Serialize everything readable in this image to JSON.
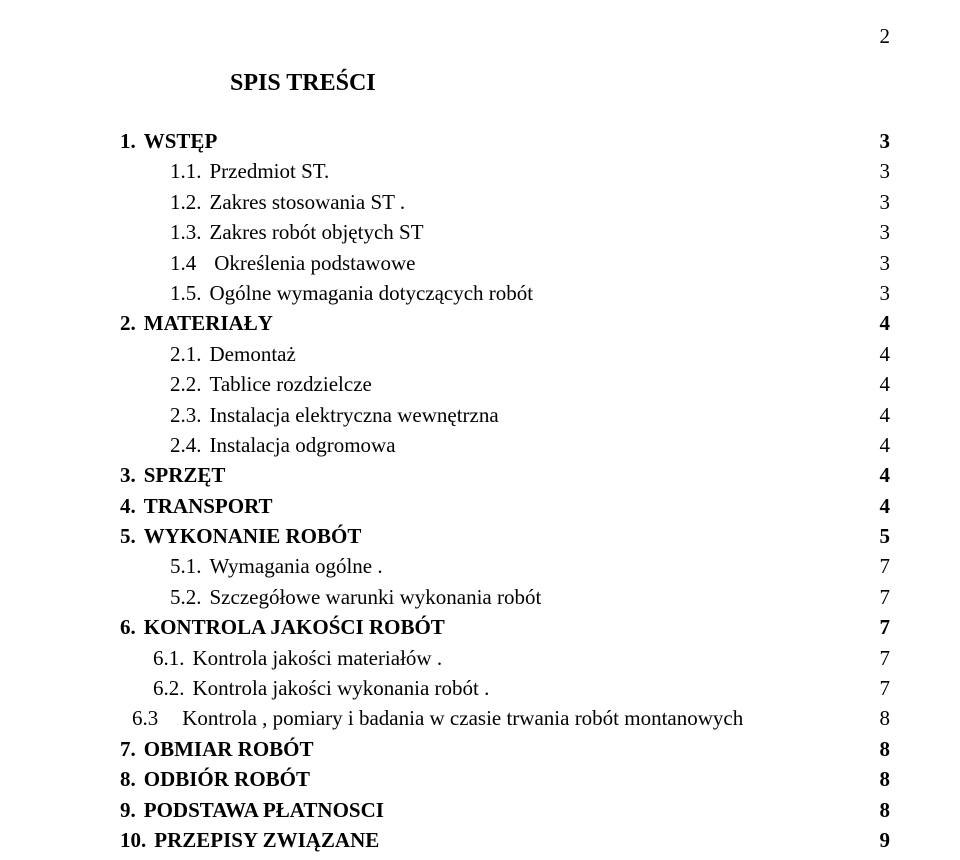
{
  "page_number": "2",
  "title": "SPIS TREŚCI",
  "text_color": "#000000",
  "background_color": "#ffffff",
  "font_family": "Times New Roman",
  "title_fontsize": 24,
  "body_fontsize": 21,
  "entries": [
    {
      "num": "1.",
      "label": "WSTĘP",
      "page": "3",
      "bold": true,
      "indent": "ind0",
      "gap": "gap-s"
    },
    {
      "num": "1.1.",
      "label": "Przedmiot ST.",
      "page": "3",
      "bold": false,
      "indent": "ind1",
      "gap": "gap-s"
    },
    {
      "num": "1.2.",
      "label": "Zakres stosowania ST .",
      "page": "3",
      "bold": false,
      "indent": "ind1",
      "gap": "gap-s"
    },
    {
      "num": "1.3.",
      "label": "Zakres robót objętych ST",
      "page": "3",
      "bold": false,
      "indent": "ind1",
      "gap": "gap-s"
    },
    {
      "num": "1.4",
      "label": "Określenia podstawowe",
      "page": "3",
      "bold": false,
      "indent": "ind1",
      "gap": "gap-m"
    },
    {
      "num": "1.5.",
      "label": "Ogólne wymagania  dotyczących robót",
      "page": "3",
      "bold": false,
      "indent": "ind1",
      "gap": "gap-s"
    },
    {
      "num": "2.",
      "label": "MATERIAŁY",
      "page": "4",
      "bold": true,
      "indent": "ind0",
      "gap": "gap-s"
    },
    {
      "num": "2.1.",
      "label": "Demontaż",
      "page": "4",
      "bold": false,
      "indent": "ind1",
      "gap": "gap-s"
    },
    {
      "num": "2.2.",
      "label": "Tablice rozdzielcze",
      "page": "4",
      "bold": false,
      "indent": "ind1",
      "gap": "gap-s"
    },
    {
      "num": "2.3.",
      "label": "Instalacja elektryczna wewnętrzna",
      "page": "4",
      "bold": false,
      "indent": "ind1",
      "gap": "gap-s"
    },
    {
      "num": "2.4.",
      "label": "Instalacja odgromowa",
      "page": "4",
      "bold": false,
      "indent": "ind1",
      "gap": "gap-s"
    },
    {
      "num": "3.",
      "label": "SPRZĘT",
      "page": "4",
      "bold": true,
      "indent": "ind0",
      "gap": "gap-s"
    },
    {
      "num": "4.",
      "label": "TRANSPORT",
      "page": "4",
      "bold": true,
      "indent": "ind0",
      "gap": "gap-s"
    },
    {
      "num": "5.",
      "label": "WYKONANIE ROBÓT",
      "page": "5",
      "bold": true,
      "indent": "ind0",
      "gap": "gap-s"
    },
    {
      "num": "5.1.",
      "label": "Wymagania ogólne .",
      "page": "7",
      "bold": false,
      "indent": "ind1",
      "gap": "gap-s"
    },
    {
      "num": "5.2.",
      "label": "Szczegółowe warunki wykonania robót",
      "page": "7",
      "bold": false,
      "indent": "ind1",
      "gap": "gap-s"
    },
    {
      "num": "6.",
      "label": "KONTROLA JAKOŚCI ROBÓT",
      "page": "7",
      "bold": true,
      "indent": "ind0",
      "gap": "gap-s"
    },
    {
      "num": "6.1.",
      "label": "Kontrola jakości materiałów .",
      "page": "7",
      "bold": false,
      "indent": "ind2",
      "gap": "gap-s"
    },
    {
      "num": "6.2.",
      "label": "Kontrola jakości wykonania robót .",
      "page": "7",
      "bold": false,
      "indent": "ind2",
      "gap": "gap-s"
    },
    {
      "num": "6.3",
      "label": "Kontrola , pomiary i badania w czasie trwania robót montanowych",
      "page": "8",
      "bold": false,
      "indent": "ind3",
      "gap": "gap-l"
    },
    {
      "num": "7.",
      "label": "OBMIAR ROBÓT",
      "page": "8",
      "bold": true,
      "indent": "ind0",
      "gap": "gap-s"
    },
    {
      "num": "8.",
      "label": "ODBIÓR ROBÓT",
      "page": "8",
      "bold": true,
      "indent": "ind0",
      "gap": "gap-s"
    },
    {
      "num": "9.",
      "label": "PODSTAWA PŁATNOSCI",
      "page": "8",
      "bold": true,
      "indent": "ind0",
      "gap": "gap-s"
    },
    {
      "num": "10.",
      "label": "PRZEPISY ZWIĄZANE",
      "page": "9",
      "bold": true,
      "indent": "ind0",
      "gap": "gap-s"
    }
  ]
}
